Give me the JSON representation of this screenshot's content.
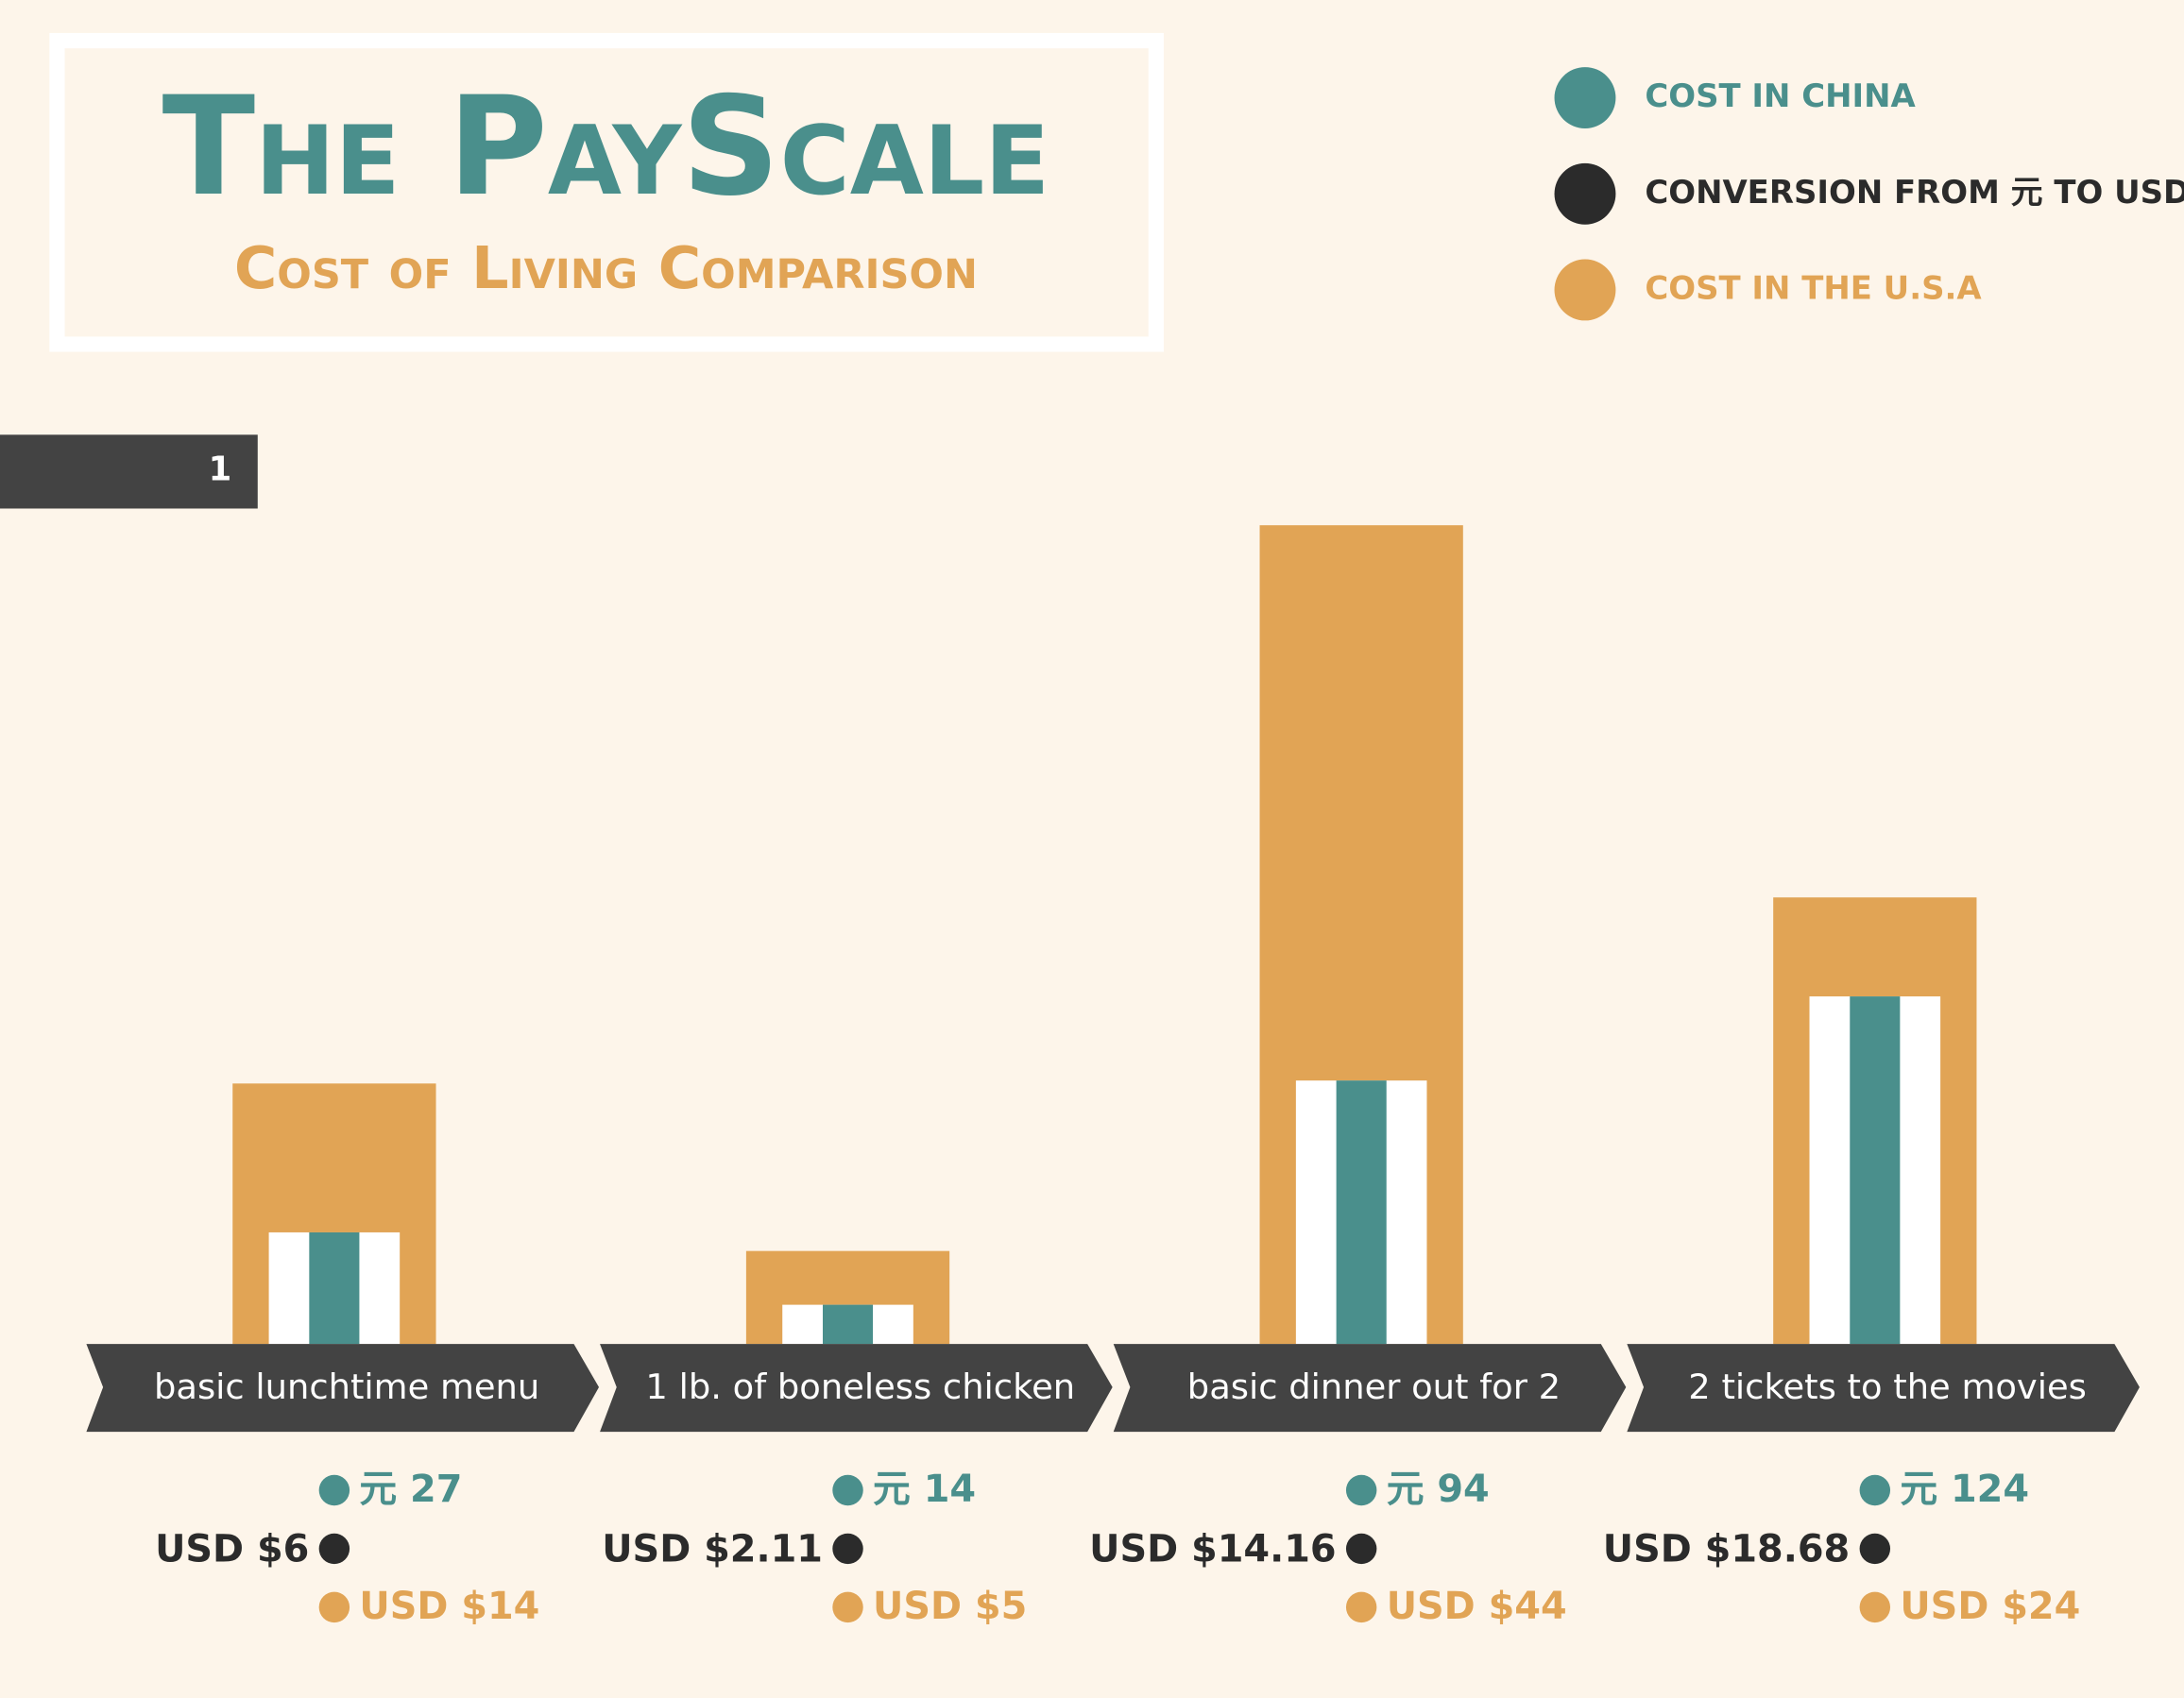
{
  "chart_data": {
    "type": "bar",
    "title": "The PayScale",
    "subtitle": "Cost of Living Comparison",
    "badge": "1",
    "categories": [
      "basic lunchtime menu",
      "1 lb. of boneless chicken",
      "basic dinner out for 2",
      "2 tickets to the movies"
    ],
    "series": [
      {
        "name": "COST IN CHINA",
        "color": "#4a8f8c",
        "values": [
          27,
          14,
          94,
          124
        ],
        "value_labels": [
          "元 27",
          "元 14",
          "元 94",
          "元 124"
        ]
      },
      {
        "name": "CONVERSION FROM 元 TO USD",
        "color": "#2b2b2b",
        "values": [
          6,
          2.11,
          14.16,
          18.68
        ],
        "value_labels": [
          "USD $6",
          "USD $2.11",
          "USD $14.16",
          "USD $18.68"
        ]
      },
      {
        "name": "COST IN THE U.S.A",
        "color": "#e1a455",
        "values": [
          14,
          5,
          44,
          24
        ],
        "value_labels": [
          "USD $14",
          "USD $5",
          "USD $44",
          "USD $24"
        ]
      }
    ]
  }
}
